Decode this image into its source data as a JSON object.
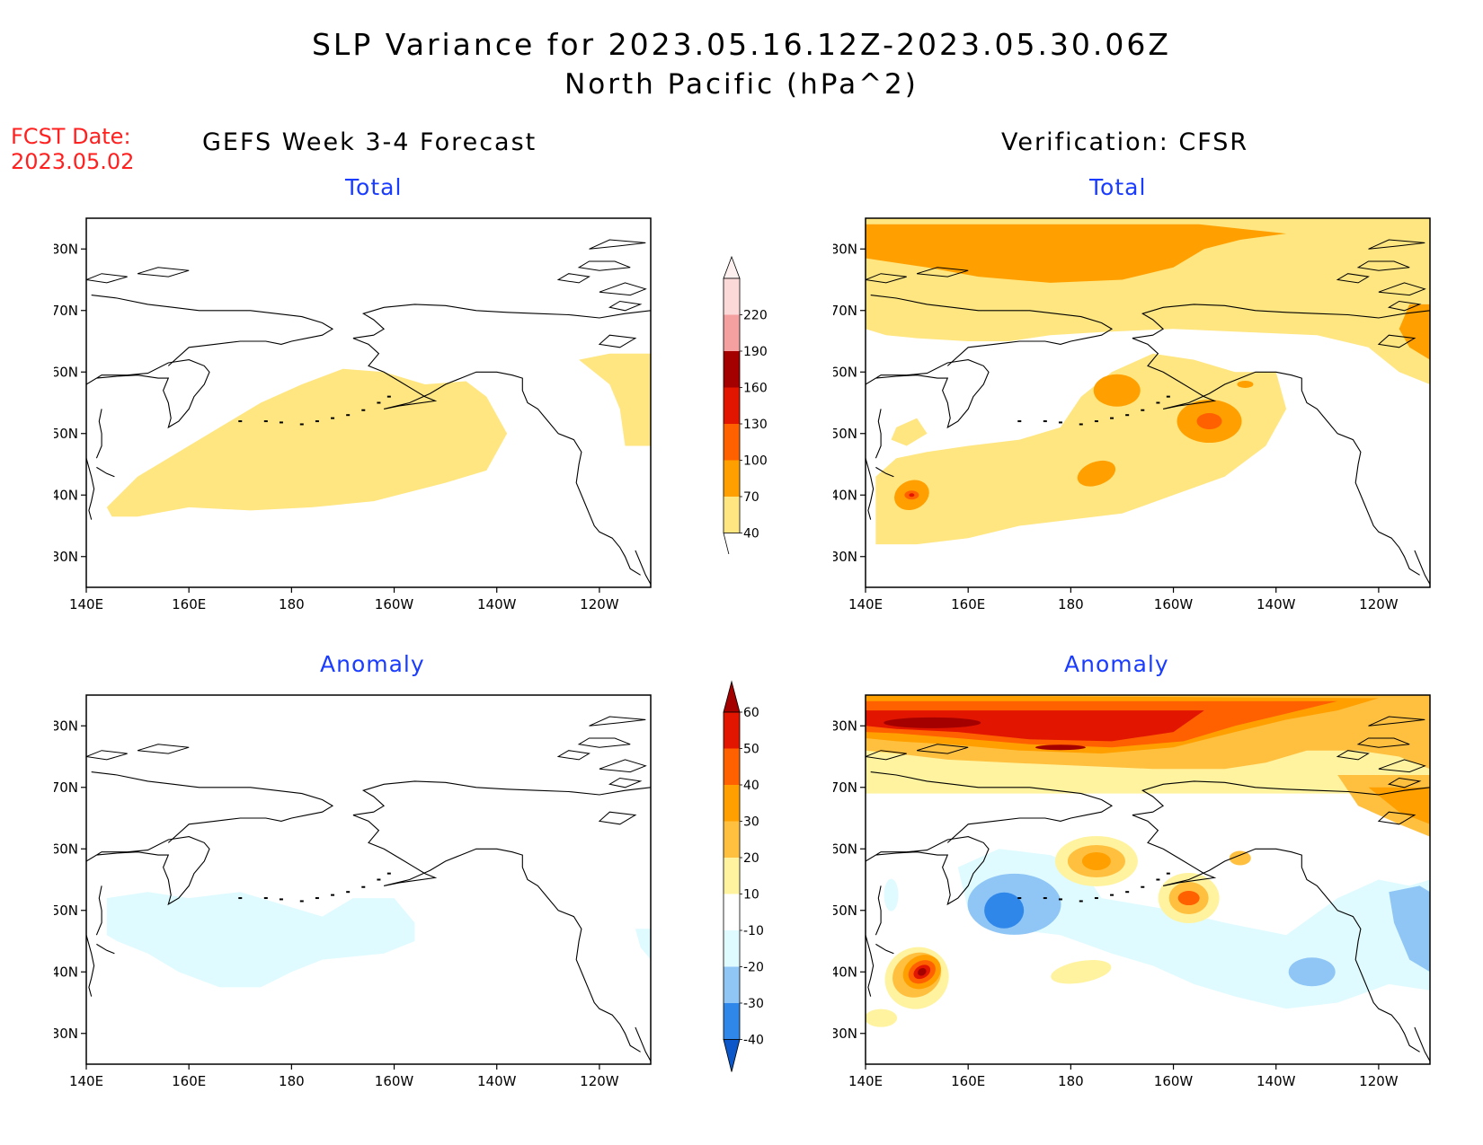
{
  "header": {
    "title": "SLP Variance for 2023.05.16.12Z-2023.05.30.06Z",
    "subtitle": "North Pacific (hPa^2)"
  },
  "fcst": {
    "label": "FCST Date:",
    "date": "2023.05.02"
  },
  "columns": {
    "left": "GEFS Week 3-4 Forecast",
    "right": "Verification: CFSR"
  },
  "panels": {
    "tl": "Total",
    "tr": "Total",
    "bl": "Anomaly",
    "br": "Anomaly"
  },
  "axes": {
    "lon_labels": [
      "140E",
      "160E",
      "180",
      "160W",
      "140W",
      "120W"
    ],
    "lat_labels": [
      "80N",
      "70N",
      "60N",
      "50N",
      "40N",
      "30N"
    ]
  },
  "colorbars": {
    "total": {
      "levels": [
        "40",
        "70",
        "100",
        "130",
        "160",
        "190",
        "220"
      ],
      "colors": [
        "#ffe680",
        "#ffa000",
        "#ff6000",
        "#e11500",
        "#a50000",
        "#f4a0a0",
        "#fcd9d9"
      ]
    },
    "anomaly": {
      "levels": [
        "-40",
        "-30",
        "-20",
        "-10",
        "10",
        "20",
        "30",
        "40",
        "50",
        "60"
      ],
      "colors": [
        "#0b56c8",
        "#2f87ea",
        "#90c6f6",
        "#dffbff",
        "#ffffff",
        "#fff3a0",
        "#ffc040",
        "#ffa000",
        "#ff6000",
        "#e11500",
        "#a50000"
      ]
    }
  },
  "palette": {
    "yellow": "#ffe680",
    "orange": "#ffa000",
    "dark_orange": "#ff6000",
    "red": "#e11500",
    "dark_red": "#a50000",
    "lt_yellow": "#fff3a0",
    "lt_orange": "#ffc040",
    "lt_cyan": "#dffbff",
    "lt_blue": "#90c6f6",
    "blue": "#2f87ea"
  }
}
